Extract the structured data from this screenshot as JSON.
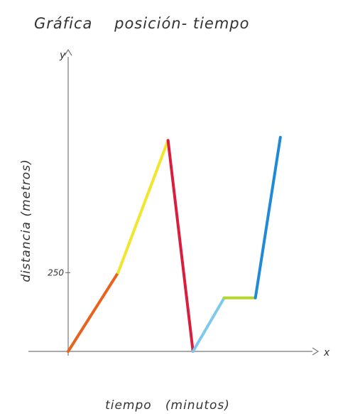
{
  "chart_data": {
    "type": "line",
    "title": "Gráfica    posición- tiempo",
    "xlabel": "tiempo   (minutos)",
    "ylabel": "distancia (metros)",
    "x_axis_letter": "x",
    "y_axis_letter": "y",
    "y_ticks": [
      {
        "value": 250,
        "label": "250"
      }
    ],
    "xlim": [
      0,
      38
    ],
    "ylim": [
      0,
      890
    ],
    "grid": false,
    "legend": "none",
    "segments": [
      {
        "points": [
          [
            0,
            0
          ],
          [
            8,
            250
          ]
        ],
        "color": "#e8621e"
      },
      {
        "points": [
          [
            8,
            250
          ],
          [
            16,
            670
          ]
        ],
        "color": "#f2e62a"
      },
      {
        "points": [
          [
            16,
            670
          ],
          [
            20,
            0
          ]
        ],
        "color": "#d81e3c"
      },
      {
        "points": [
          [
            20,
            0
          ],
          [
            25,
            170
          ]
        ],
        "color": "#7fc9ee"
      },
      {
        "points": [
          [
            25,
            170
          ],
          [
            30,
            170
          ]
        ],
        "color": "#b6d72a"
      },
      {
        "points": [
          [
            30,
            170
          ],
          [
            34,
            680
          ]
        ],
        "color": "#1f8ad6"
      }
    ]
  }
}
